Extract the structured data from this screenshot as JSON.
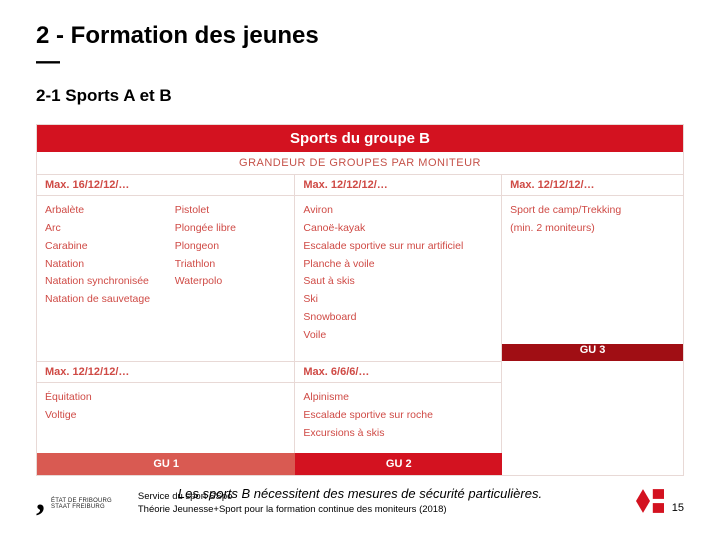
{
  "title": "2 - Formation des jeunes",
  "dash": "—",
  "subtitle": "2-1 Sports A et B",
  "table": {
    "header": "Sports du groupe B",
    "subheader": "GRANDEUR DE GROUPES PAR MONITEUR",
    "accent_color": "#d31220",
    "text_color": "#cf4a45",
    "border_color": "#e8d9d6",
    "gu_colors": [
      "#d95a52",
      "#d31220",
      "#a00e14"
    ],
    "row1": {
      "col1": {
        "head": "Max. 16/12/12/…",
        "left": [
          "Arbalète",
          "Arc",
          "Carabine",
          "Natation",
          "Natation synchronisée",
          "Natation de sauvetage"
        ],
        "right": [
          "Pistolet",
          "Plongée libre",
          "Plongeon",
          "Triathlon",
          "Waterpolo"
        ]
      },
      "col2": {
        "head": "Max. 12/12/12/…",
        "items": [
          "Aviron",
          "Canoë-kayak",
          "Escalade sportive sur mur artificiel",
          "Planche à voile",
          "Saut à skis",
          "Ski",
          "Snowboard",
          "Voile"
        ]
      },
      "col3": {
        "head": "Max. 12/12/12/…",
        "items": [
          "Sport de camp/Trekking",
          "(min. 2 moniteurs)"
        ]
      }
    },
    "row2": {
      "col1": {
        "head": "Max. 12/12/12/…",
        "items": [
          "Équitation",
          "Voltige"
        ]
      },
      "col2": {
        "head": "Max. 6/6/6/…",
        "items": [
          "Alpinisme",
          "Escalade sportive sur roche",
          "Excursions à skis"
        ]
      }
    },
    "gu_labels": [
      "GU 1",
      "GU 2",
      "GU 3"
    ]
  },
  "caption": "Les sports B nécessitent des mesures de sécurité particulières.",
  "footer": {
    "etat_line1": "ÉTAT DE FRIBOURG",
    "etat_line2": "STAAT FREIBURG",
    "line1": "Service du sport SSpo",
    "line2": "Théorie Jeunesse+Sport pour la formation continue des moniteurs (2018)"
  },
  "page_number": "15",
  "js_logo_color": "#d31220"
}
